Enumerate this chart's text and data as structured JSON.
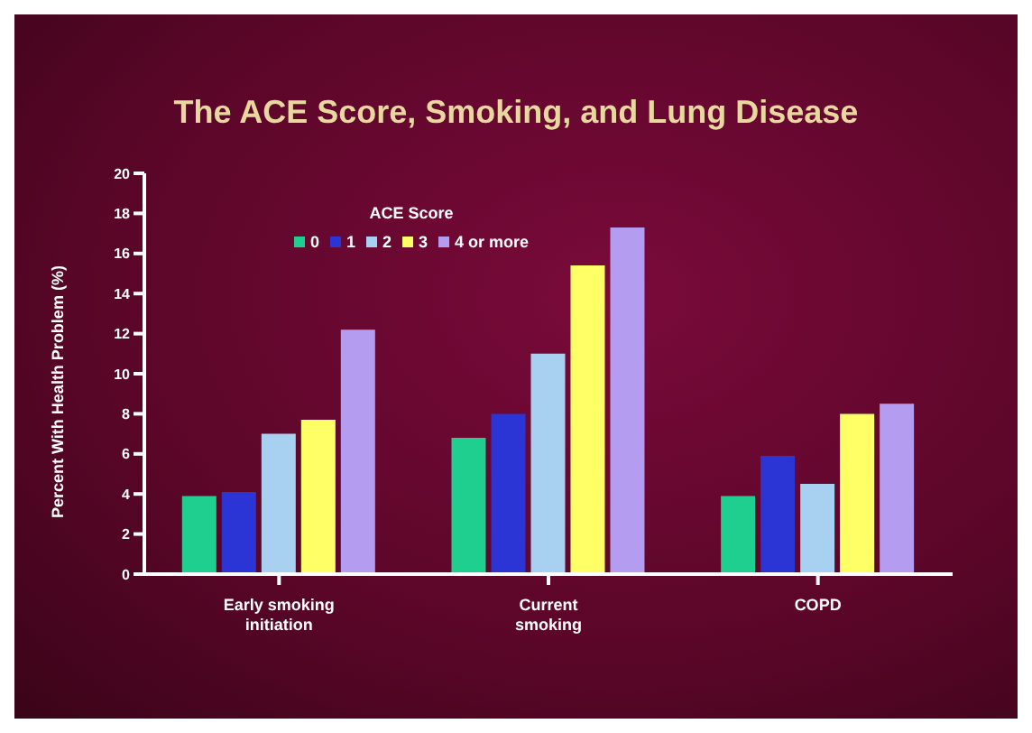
{
  "chart_data": {
    "type": "bar",
    "title": "The ACE Score, Smoking, and Lung Disease",
    "ylabel": "Percent With Health Problem  (%)",
    "legend_title": "ACE Score",
    "categories": [
      "Early smoking initiation",
      "Current smoking",
      "COPD"
    ],
    "series": [
      {
        "name": "0",
        "color": "#1fcf8f",
        "values": [
          3.9,
          6.8,
          3.9
        ]
      },
      {
        "name": "1",
        "color": "#2b35d6",
        "values": [
          4.1,
          8.0,
          5.9
        ]
      },
      {
        "name": "2",
        "color": "#a8d0f0",
        "values": [
          7.0,
          11.0,
          4.5
        ]
      },
      {
        "name": "3",
        "color": "#ffff66",
        "values": [
          7.7,
          15.4,
          8.0
        ]
      },
      {
        "name": "4 or more",
        "color": "#b49cf0",
        "values": [
          12.2,
          17.3,
          8.5
        ]
      }
    ],
    "ylim": [
      0,
      20
    ],
    "yticks": [
      0,
      2,
      4,
      6,
      8,
      10,
      12,
      14,
      16,
      18,
      20
    ],
    "grid": false,
    "legend": "top left"
  }
}
